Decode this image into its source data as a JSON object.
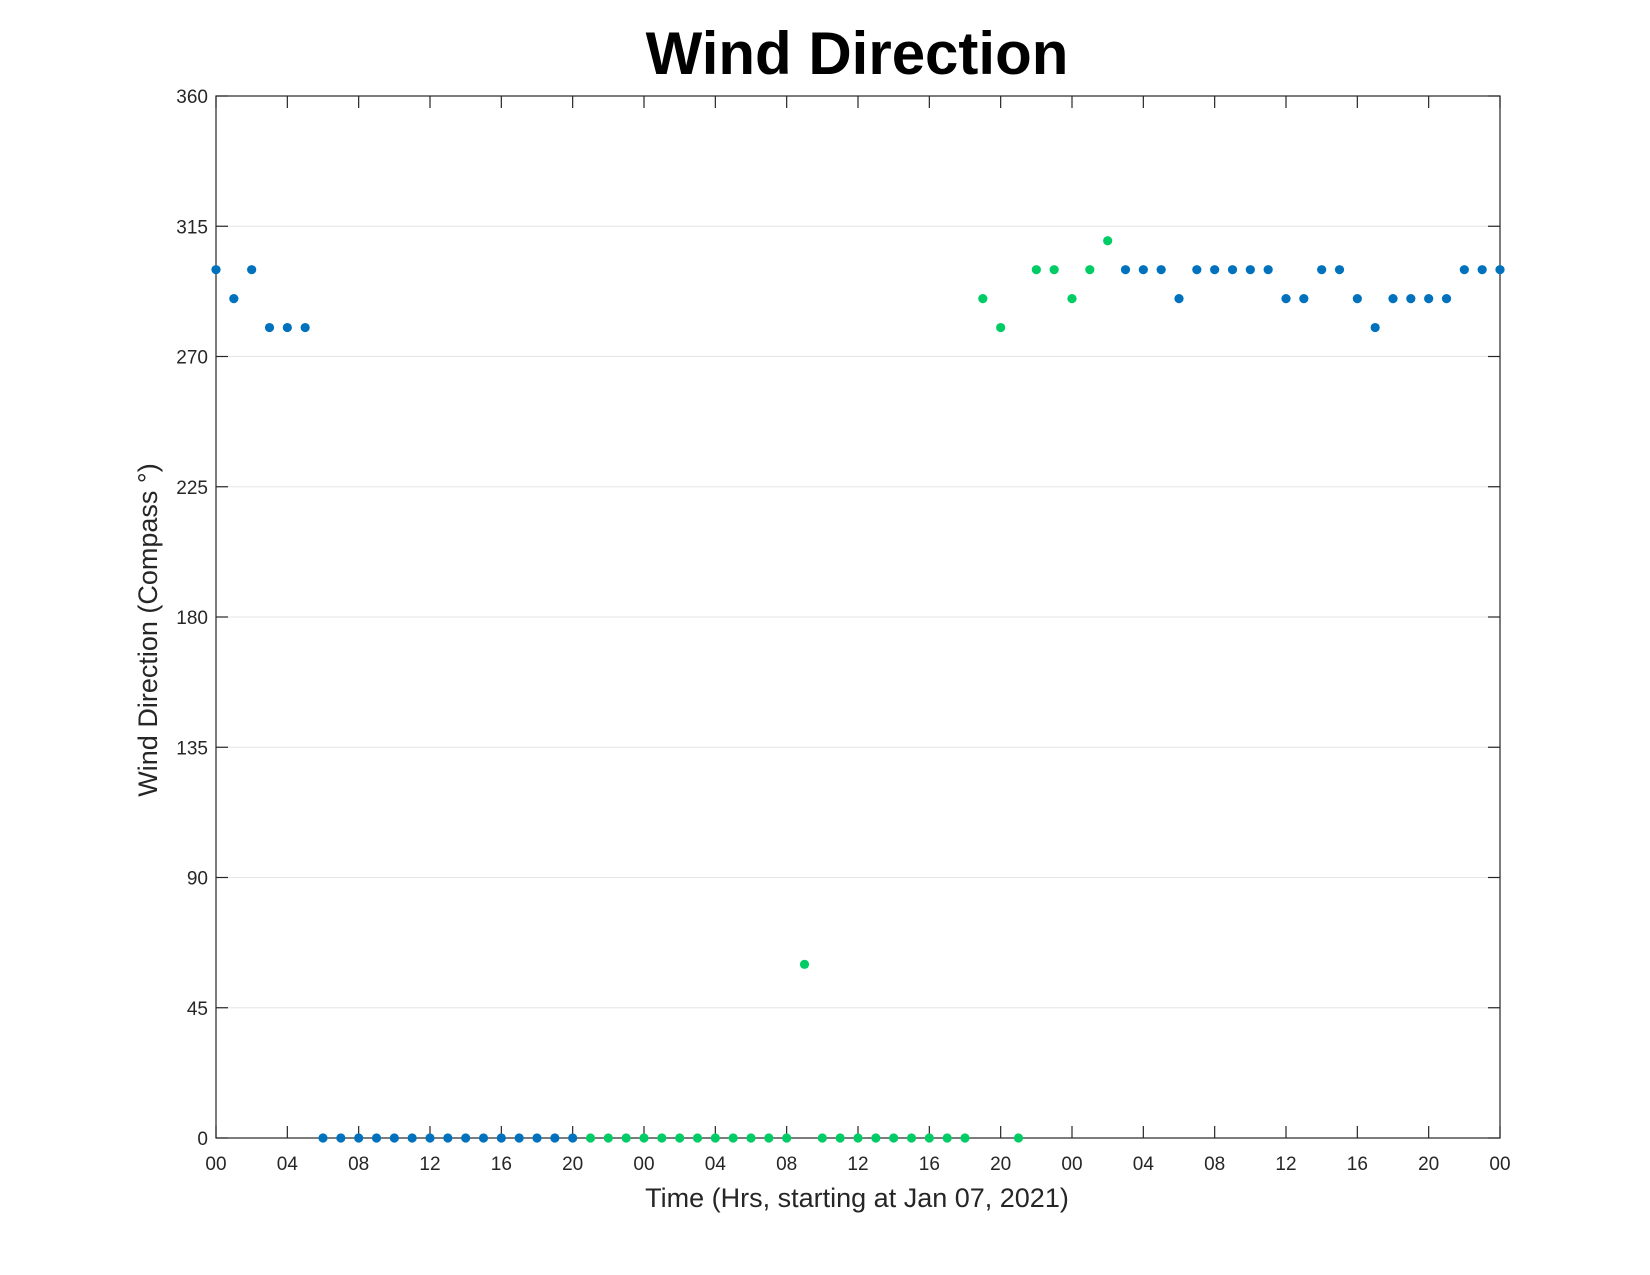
{
  "chart_data": {
    "type": "scatter",
    "title": "Wind Direction",
    "xlabel": "Time (Hrs, starting at Jan 07, 2021)",
    "ylabel": "Wind Direction (Compass °)",
    "xlim": [
      "2021-01-07 00:00",
      "2021-01-10 00:00"
    ],
    "ylim": [
      0,
      360
    ],
    "x_tick_labels": [
      "00",
      "04",
      "08",
      "12",
      "16",
      "20",
      "00",
      "04",
      "08",
      "12",
      "16",
      "20",
      "00",
      "04",
      "08",
      "12",
      "16",
      "20",
      "00"
    ],
    "x_tick_step_hours": 4,
    "y_ticks": [
      0,
      45,
      90,
      135,
      180,
      225,
      270,
      315,
      360
    ],
    "y_tick_labels": [
      "0",
      "45",
      "90",
      "135",
      "180",
      "225",
      "270",
      "315",
      "360"
    ],
    "grid": {
      "horizontal": true,
      "vertical": false
    },
    "colors": {
      "blue": "#0072BD",
      "green": "#00CC66",
      "axis": "#262626",
      "grid": "#E6E6E6"
    },
    "series": [
      {
        "color": "#0072BD",
        "points": [
          [
            "2021-01-07 00:00",
            300
          ],
          [
            "2021-01-07 01:00",
            290
          ],
          [
            "2021-01-07 02:00",
            300
          ],
          [
            "2021-01-07 03:00",
            280
          ],
          [
            "2021-01-07 04:00",
            280
          ],
          [
            "2021-01-07 05:00",
            280
          ],
          [
            "2021-01-07 06:00",
            0
          ],
          [
            "2021-01-07 07:00",
            0
          ],
          [
            "2021-01-07 08:00",
            0
          ],
          [
            "2021-01-07 09:00",
            0
          ],
          [
            "2021-01-07 10:00",
            0
          ],
          [
            "2021-01-07 11:00",
            0
          ],
          [
            "2021-01-07 12:00",
            0
          ],
          [
            "2021-01-07 13:00",
            0
          ],
          [
            "2021-01-07 14:00",
            0
          ],
          [
            "2021-01-07 15:00",
            0
          ],
          [
            "2021-01-07 16:00",
            0
          ],
          [
            "2021-01-07 17:00",
            0
          ],
          [
            "2021-01-07 18:00",
            0
          ],
          [
            "2021-01-07 19:00",
            0
          ],
          [
            "2021-01-07 20:00",
            0
          ],
          [
            "2021-01-09 03:00",
            300
          ],
          [
            "2021-01-09 04:00",
            300
          ],
          [
            "2021-01-09 05:00",
            300
          ],
          [
            "2021-01-09 06:00",
            290
          ],
          [
            "2021-01-09 07:00",
            300
          ],
          [
            "2021-01-09 08:00",
            300
          ],
          [
            "2021-01-09 09:00",
            300
          ],
          [
            "2021-01-09 10:00",
            300
          ],
          [
            "2021-01-09 11:00",
            300
          ],
          [
            "2021-01-09 12:00",
            290
          ],
          [
            "2021-01-09 13:00",
            290
          ],
          [
            "2021-01-09 14:00",
            300
          ],
          [
            "2021-01-09 15:00",
            300
          ],
          [
            "2021-01-09 16:00",
            290
          ],
          [
            "2021-01-09 17:00",
            280
          ],
          [
            "2021-01-09 18:00",
            290
          ],
          [
            "2021-01-09 19:00",
            290
          ],
          [
            "2021-01-09 20:00",
            290
          ],
          [
            "2021-01-09 21:00",
            290
          ],
          [
            "2021-01-09 22:00",
            300
          ],
          [
            "2021-01-09 23:00",
            300
          ],
          [
            "2021-01-10 00:00",
            300
          ]
        ]
      },
      {
        "color": "#00CC66",
        "points": [
          [
            "2021-01-07 21:00",
            0
          ],
          [
            "2021-01-07 22:00",
            0
          ],
          [
            "2021-01-07 23:00",
            0
          ],
          [
            "2021-01-08 00:00",
            0
          ],
          [
            "2021-01-08 01:00",
            0
          ],
          [
            "2021-01-08 02:00",
            0
          ],
          [
            "2021-01-08 03:00",
            0
          ],
          [
            "2021-01-08 04:00",
            0
          ],
          [
            "2021-01-08 05:00",
            0
          ],
          [
            "2021-01-08 06:00",
            0
          ],
          [
            "2021-01-08 07:00",
            0
          ],
          [
            "2021-01-08 08:00",
            0
          ],
          [
            "2021-01-08 09:00",
            60
          ],
          [
            "2021-01-08 10:00",
            0
          ],
          [
            "2021-01-08 11:00",
            0
          ],
          [
            "2021-01-08 12:00",
            0
          ],
          [
            "2021-01-08 13:00",
            0
          ],
          [
            "2021-01-08 14:00",
            0
          ],
          [
            "2021-01-08 15:00",
            0
          ],
          [
            "2021-01-08 16:00",
            0
          ],
          [
            "2021-01-08 17:00",
            0
          ],
          [
            "2021-01-08 18:00",
            0
          ],
          [
            "2021-01-08 19:00",
            290
          ],
          [
            "2021-01-08 20:00",
            280
          ],
          [
            "2021-01-08 21:00",
            0
          ],
          [
            "2021-01-08 22:00",
            300
          ],
          [
            "2021-01-08 23:00",
            300
          ],
          [
            "2021-01-09 00:00",
            290
          ],
          [
            "2021-01-09 01:00",
            300
          ],
          [
            "2021-01-09 02:00",
            310
          ]
        ]
      }
    ]
  }
}
